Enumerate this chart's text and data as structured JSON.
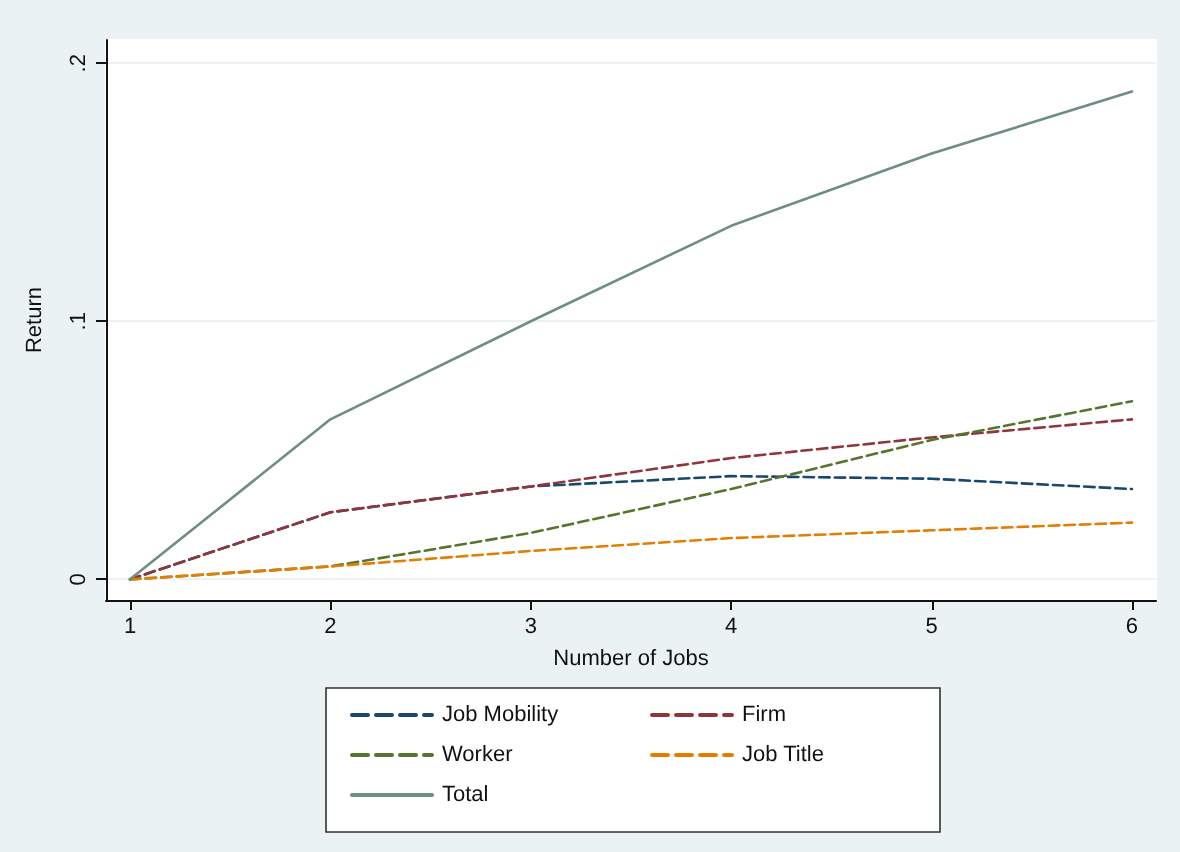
{
  "chart_data": {
    "type": "line",
    "xlabel": "Number of Jobs",
    "ylabel": "Return",
    "x": [
      1,
      2,
      3,
      4,
      5,
      6
    ],
    "series": [
      {
        "name": "Job Mobility",
        "color": "#1a476f",
        "line_style": "dashed",
        "values": [
          0,
          0.026,
          0.036,
          0.04,
          0.039,
          0.035
        ]
      },
      {
        "name": "Firm",
        "color": "#90353b",
        "line_style": "dashed",
        "values": [
          0,
          0.026,
          0.036,
          0.047,
          0.055,
          0.062
        ]
      },
      {
        "name": "Worker",
        "color": "#55752f",
        "line_style": "dashed",
        "values": [
          0,
          0.005,
          0.018,
          0.035,
          0.054,
          0.069
        ]
      },
      {
        "name": "Job Title",
        "color": "#e37e00",
        "line_style": "dashed",
        "values": [
          0,
          0.005,
          0.011,
          0.016,
          0.019,
          0.022
        ]
      },
      {
        "name": "Total",
        "color": "#6e8e84",
        "line_style": "solid",
        "values": [
          0,
          0.062,
          0.1,
          0.137,
          0.165,
          0.189
        ]
      }
    ],
    "xlim": [
      0.88,
      6.12
    ],
    "xticks": [
      1,
      2,
      3,
      4,
      5,
      6
    ],
    "ylim": [
      -0.008,
      0.209
    ],
    "yticks": [
      {
        "value": 0,
        "label": "0"
      },
      {
        "value": 0.1,
        "label": ".1"
      },
      {
        "value": 0.2,
        "label": ".2"
      }
    ],
    "grid": "y",
    "legend": "bottom",
    "marker": "none"
  }
}
